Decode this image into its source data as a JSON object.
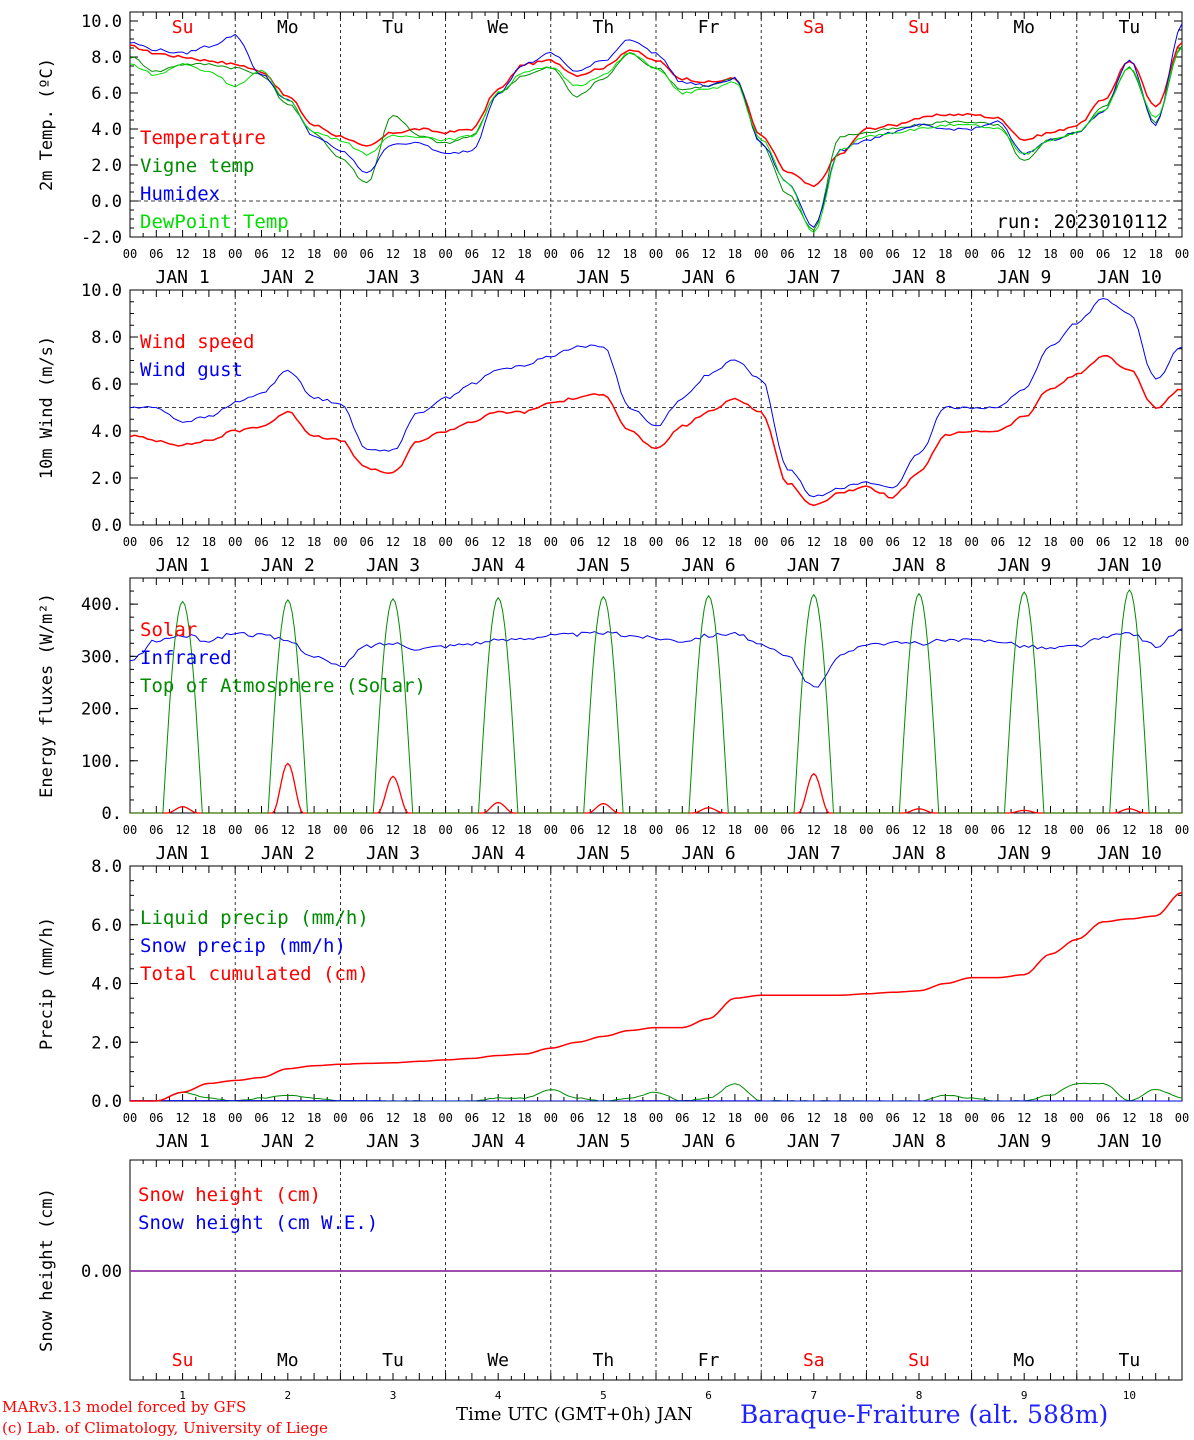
{
  "footer": {
    "model_line": "MARv3.13 model forced by GFS",
    "credit_line": "(c) Lab. of Climatology, University of Liege",
    "time_label": "Time UTC (GMT+0h)",
    "month_label": "JAN",
    "station": "Baraque-Fraiture (alt. 588m)"
  },
  "run_label": "run: 2023010112",
  "days": {
    "weekday_top": [
      "Su",
      "Mo",
      "Tu",
      "We",
      "Th",
      "Fr",
      "Sa",
      "Su",
      "Mo",
      "Tu"
    ],
    "weekday_colors": [
      "#ff0000",
      "#000000",
      "#000000",
      "#000000",
      "#000000",
      "#000000",
      "#ff0000",
      "#ff0000",
      "#000000",
      "#000000"
    ],
    "weekday_bottom": [
      "Su",
      "Mo",
      "Tu",
      "We",
      "Th",
      "Fr",
      "Sa",
      "Su",
      "Mo",
      "Tu"
    ],
    "day_numbers": [
      "1",
      "2",
      "3",
      "4",
      "5",
      "6",
      "7",
      "8",
      "9",
      "10"
    ],
    "date_labels": [
      "JAN  1",
      "JAN  2",
      "JAN  3",
      "JAN  4",
      "JAN  5",
      "JAN  6",
      "JAN  7",
      "JAN  8",
      "JAN  9",
      "JAN 10"
    ],
    "hour_labels": [
      "00",
      "06",
      "12",
      "18"
    ],
    "end_hour_label": "00"
  },
  "colors": {
    "red": "#ff0000",
    "green": "#008c00",
    "blue": "#0000ee",
    "lightgreen": "#00dd00",
    "purple": "#7f3fbf"
  },
  "chart_data": [
    {
      "type": "line",
      "ylabel": "2m Temp. (ºC)",
      "ylim": [
        -2,
        10.5
      ],
      "yticks": [
        "-2.0",
        "0.0",
        "2.0",
        "4.0",
        "6.0",
        "8.0",
        "10.0"
      ],
      "reference_line": 0,
      "x_unit": "hours since 2023-01-01 00 UTC",
      "series": [
        {
          "name": "Temperature",
          "color": "#ff0000",
          "x": [
            0,
            6,
            12,
            18,
            24,
            30,
            36,
            42,
            48,
            54,
            60,
            66,
            72,
            78,
            84,
            90,
            96,
            102,
            108,
            114,
            120,
            126,
            132,
            138,
            144,
            150,
            156,
            162,
            168,
            174,
            180,
            186,
            192,
            198,
            204,
            210,
            216,
            222,
            228,
            234,
            240
          ],
          "values": [
            8.6,
            8.2,
            8.0,
            7.8,
            7.6,
            7.2,
            5.8,
            4.2,
            3.6,
            3.0,
            3.8,
            4.0,
            3.8,
            4.0,
            6.2,
            7.6,
            7.8,
            7.0,
            7.4,
            8.4,
            7.8,
            6.8,
            6.6,
            6.8,
            3.6,
            1.6,
            0.8,
            2.6,
            4.0,
            4.2,
            4.6,
            4.8,
            4.8,
            4.6,
            3.4,
            3.8,
            4.2,
            5.6,
            7.8,
            5.2,
            8.8
          ]
        },
        {
          "name": "Vigne temp",
          "color": "#008c00",
          "x": [
            0,
            6,
            12,
            18,
            24,
            30,
            36,
            42,
            48,
            54,
            60,
            66,
            72,
            78,
            84,
            90,
            96,
            102,
            108,
            114,
            120,
            126,
            132,
            138,
            144,
            150,
            156,
            162,
            168,
            174,
            180,
            186,
            192,
            198,
            204,
            210,
            216,
            222,
            228,
            234,
            240
          ],
          "values": [
            8.0,
            7.2,
            7.6,
            7.6,
            7.4,
            7.0,
            5.4,
            3.8,
            2.4,
            1.0,
            4.8,
            3.6,
            3.2,
            3.6,
            6.0,
            7.0,
            7.4,
            5.8,
            6.8,
            8.2,
            7.4,
            6.2,
            6.4,
            6.8,
            3.2,
            0.4,
            -1.6,
            3.6,
            3.8,
            4.0,
            4.2,
            4.4,
            4.4,
            4.2,
            2.2,
            3.4,
            3.8,
            5.2,
            7.4,
            4.4,
            8.6
          ]
        },
        {
          "name": "Humidex",
          "color": "#0000ee",
          "x": [
            0,
            6,
            12,
            18,
            24,
            30,
            36,
            42,
            48,
            54,
            60,
            66,
            72,
            78,
            84,
            90,
            96,
            102,
            108,
            114,
            120,
            126,
            132,
            138,
            144,
            150,
            156,
            162,
            168,
            174,
            180,
            186,
            192,
            198,
            204,
            210,
            216,
            222,
            228,
            234,
            240
          ],
          "values": [
            8.8,
            8.4,
            8.2,
            8.6,
            9.2,
            7.0,
            5.6,
            3.6,
            2.8,
            1.6,
            3.2,
            3.2,
            2.6,
            2.8,
            6.0,
            7.6,
            8.2,
            7.2,
            7.8,
            9.0,
            8.2,
            6.6,
            6.4,
            6.8,
            3.2,
            1.0,
            -1.4,
            2.8,
            3.4,
            3.8,
            4.2,
            4.0,
            4.0,
            4.4,
            2.6,
            3.4,
            3.8,
            5.0,
            7.8,
            4.2,
            9.8
          ]
        },
        {
          "name": "DewPoint Temp",
          "color": "#00dd00",
          "x": [
            0,
            6,
            12,
            18,
            24,
            30,
            36,
            42,
            48,
            54,
            60,
            66,
            72,
            78,
            84,
            90,
            96,
            102,
            108,
            114,
            120,
            126,
            132,
            138,
            144,
            150,
            156,
            162,
            168,
            174,
            180,
            186,
            192,
            198,
            204,
            210,
            216,
            222,
            228,
            234,
            240
          ],
          "values": [
            7.6,
            7.0,
            7.6,
            7.2,
            6.4,
            7.2,
            5.6,
            3.8,
            3.4,
            2.6,
            3.6,
            3.6,
            3.4,
            3.6,
            6.0,
            7.2,
            7.4,
            6.4,
            7.0,
            8.2,
            7.4,
            6.0,
            6.2,
            6.6,
            3.4,
            1.0,
            -1.8,
            2.8,
            3.6,
            3.8,
            4.0,
            4.2,
            4.2,
            4.0,
            2.6,
            3.4,
            3.8,
            5.0,
            7.4,
            4.6,
            8.6
          ]
        }
      ],
      "legend": [
        "Temperature",
        "Vigne temp",
        "Humidex",
        "DewPoint Temp"
      ]
    },
    {
      "type": "line",
      "ylabel": "10m Wind (m/s)",
      "ylim": [
        0,
        10
      ],
      "yticks": [
        "0.0",
        "2.0",
        "4.0",
        "6.0",
        "8.0",
        "10.0"
      ],
      "reference_line": 5,
      "series": [
        {
          "name": "Wind speed",
          "color": "#ff0000",
          "x": [
            0,
            6,
            12,
            18,
            24,
            30,
            36,
            42,
            48,
            54,
            60,
            66,
            72,
            78,
            84,
            90,
            96,
            102,
            108,
            114,
            120,
            126,
            132,
            138,
            144,
            150,
            156,
            162,
            168,
            174,
            180,
            186,
            192,
            198,
            204,
            210,
            216,
            222,
            228,
            234,
            240
          ],
          "values": [
            3.8,
            3.6,
            3.4,
            3.6,
            4.0,
            4.2,
            4.8,
            3.8,
            3.6,
            2.4,
            2.2,
            3.6,
            4.0,
            4.4,
            4.8,
            4.8,
            5.2,
            5.4,
            5.6,
            4.0,
            3.2,
            4.2,
            4.8,
            5.4,
            4.8,
            1.8,
            0.8,
            1.4,
            1.6,
            1.2,
            2.2,
            3.8,
            4.0,
            4.0,
            4.6,
            5.8,
            6.4,
            7.2,
            6.6,
            5.0,
            5.8
          ]
        },
        {
          "name": "Wind gust",
          "color": "#0000ee",
          "x": [
            0,
            6,
            12,
            18,
            24,
            30,
            36,
            42,
            48,
            54,
            60,
            66,
            72,
            78,
            84,
            90,
            96,
            102,
            108,
            114,
            120,
            126,
            132,
            138,
            144,
            150,
            156,
            162,
            168,
            174,
            180,
            186,
            192,
            198,
            204,
            210,
            216,
            222,
            228,
            234,
            240
          ],
          "values": [
            5.0,
            5.0,
            4.4,
            4.6,
            5.2,
            5.6,
            6.6,
            5.4,
            5.2,
            3.2,
            3.2,
            4.8,
            5.4,
            6.0,
            6.6,
            6.8,
            7.2,
            7.6,
            7.6,
            5.0,
            4.2,
            5.4,
            6.4,
            7.0,
            6.2,
            2.4,
            1.2,
            1.6,
            1.8,
            1.6,
            3.0,
            5.0,
            5.0,
            5.0,
            5.8,
            7.6,
            8.6,
            9.6,
            9.0,
            6.2,
            7.6
          ]
        }
      ],
      "legend": [
        "Wind speed",
        "Wind gust"
      ]
    },
    {
      "type": "line",
      "ylabel": "Energy fluxes (W/m²)",
      "ylim": [
        0,
        450
      ],
      "yticks": [
        "0.",
        "100.",
        "200.",
        "300.",
        "400."
      ],
      "series": [
        {
          "name": "Solar",
          "color": "#ff0000",
          "kind": "solar",
          "peaks": [
            12,
            95,
            70,
            20,
            18,
            10,
            75,
            8,
            5,
            8
          ]
        },
        {
          "name": "Infrared",
          "color": "#0000ee",
          "x": [
            0,
            6,
            12,
            18,
            24,
            30,
            36,
            42,
            48,
            54,
            60,
            66,
            72,
            78,
            84,
            90,
            96,
            102,
            108,
            114,
            120,
            126,
            132,
            138,
            144,
            150,
            156,
            162,
            168,
            174,
            180,
            186,
            192,
            198,
            204,
            210,
            216,
            222,
            228,
            234,
            240
          ],
          "values": [
            290,
            330,
            340,
            330,
            345,
            340,
            330,
            300,
            280,
            320,
            325,
            315,
            320,
            325,
            330,
            335,
            340,
            342,
            345,
            340,
            335,
            330,
            340,
            345,
            320,
            300,
            240,
            300,
            325,
            325,
            325,
            330,
            330,
            330,
            320,
            315,
            320,
            335,
            345,
            320,
            350
          ]
        },
        {
          "name": "Top of Atmosphere (Solar)",
          "color": "#008c00",
          "kind": "toa",
          "peaks": [
            405,
            408,
            410,
            412,
            414,
            416,
            418,
            420,
            423,
            427
          ]
        }
      ],
      "legend": [
        "Solar",
        "Infrared",
        "Top of Atmosphere (Solar)"
      ]
    },
    {
      "type": "line",
      "ylabel": "Precip (mm/h)",
      "ylim": [
        0,
        8
      ],
      "yticks": [
        "0.0",
        "2.0",
        "4.0",
        "6.0",
        "8.0"
      ],
      "series": [
        {
          "name": "Liquid precip (mm/h)",
          "color": "#008c00",
          "x": [
            0,
            6,
            12,
            18,
            24,
            30,
            36,
            42,
            48,
            54,
            60,
            66,
            72,
            78,
            84,
            90,
            96,
            102,
            108,
            114,
            120,
            126,
            132,
            138,
            144,
            150,
            156,
            162,
            168,
            174,
            180,
            186,
            192,
            198,
            204,
            210,
            216,
            222,
            228,
            234,
            240
          ],
          "values": [
            0,
            0,
            0.3,
            0.1,
            0,
            0.1,
            0.2,
            0.1,
            0,
            0,
            0,
            0,
            0,
            0,
            0.1,
            0.1,
            0.4,
            0.1,
            0,
            0.1,
            0.3,
            0,
            0.1,
            0.6,
            0,
            0,
            0,
            0,
            0,
            0,
            0,
            0.2,
            0.1,
            0,
            0,
            0.2,
            0.6,
            0.6,
            0,
            0.4,
            0.1
          ]
        },
        {
          "name": "Snow precip (mm/h)",
          "color": "#0000ee",
          "x": [
            0,
            240
          ],
          "values": [
            0,
            0
          ]
        },
        {
          "name": "Total cumulated (cm)",
          "color": "#ff0000",
          "x": [
            0,
            6,
            12,
            18,
            24,
            30,
            36,
            42,
            48,
            54,
            60,
            66,
            72,
            78,
            84,
            90,
            96,
            102,
            108,
            114,
            120,
            126,
            132,
            138,
            144,
            150,
            156,
            162,
            168,
            174,
            180,
            186,
            192,
            198,
            204,
            210,
            216,
            222,
            228,
            234,
            240
          ],
          "values": [
            0,
            0,
            0.3,
            0.6,
            0.7,
            0.8,
            1.1,
            1.2,
            1.25,
            1.28,
            1.3,
            1.35,
            1.4,
            1.45,
            1.55,
            1.6,
            1.8,
            2.0,
            2.2,
            2.4,
            2.5,
            2.5,
            2.8,
            3.5,
            3.6,
            3.6,
            3.6,
            3.6,
            3.65,
            3.7,
            3.75,
            4.0,
            4.2,
            4.2,
            4.3,
            5.0,
            5.5,
            6.1,
            6.2,
            6.3,
            7.1
          ]
        }
      ],
      "legend": [
        "Liquid precip (mm/h)",
        "Snow precip (mm/h)",
        "Total cumulated (cm)"
      ]
    },
    {
      "type": "line",
      "ylabel": "Snow height (cm)",
      "yticks": [
        "0.00"
      ],
      "series": [
        {
          "name": "Snow height (cm)",
          "color": "#ff0000",
          "x": [
            0,
            240
          ],
          "values": [
            0,
            0
          ]
        },
        {
          "name": "Snow height (cm W.E.)",
          "color": "#0000ee",
          "x": [
            0,
            240
          ],
          "values": [
            0,
            0
          ]
        }
      ],
      "legend": [
        "Snow height (cm)",
        "Snow height (cm W.E.)"
      ]
    }
  ]
}
